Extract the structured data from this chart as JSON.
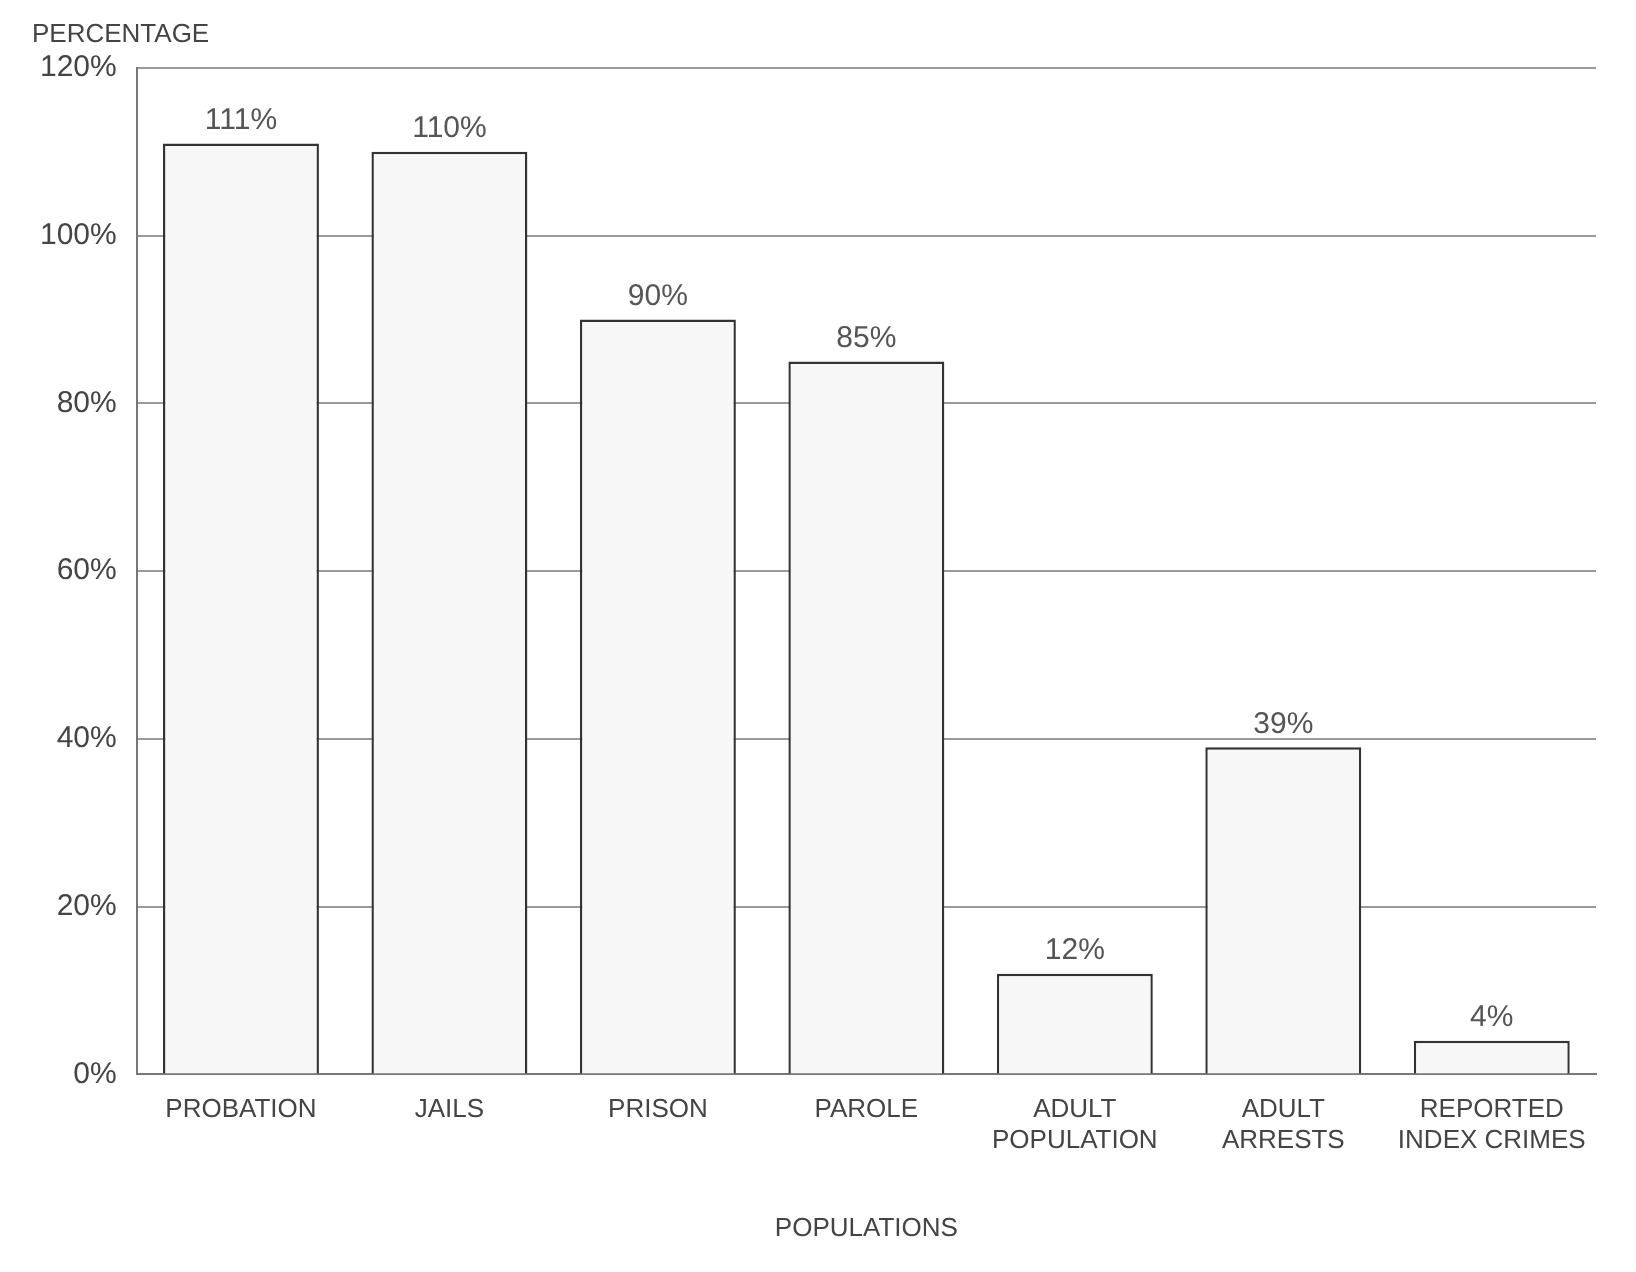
{
  "chart_data": {
    "type": "bar",
    "ylabel": "PERCENTAGE",
    "xlabel": "POPULATIONS",
    "categories": [
      "PROBATION",
      "JAILS",
      "PRISON",
      "PAROLE",
      "ADULT POPULATION",
      "ADULT ARRESTS",
      "REPORTED INDEX CRIMES"
    ],
    "values": [
      111,
      110,
      90,
      85,
      12,
      39,
      4
    ],
    "value_labels": [
      "111%",
      "110%",
      "90%",
      "85%",
      "12%",
      "39%",
      "4%"
    ],
    "color": "#f7f7f7",
    "ylim": [
      0,
      120
    ],
    "yticks": [
      {
        "value": 0,
        "label": "0%"
      },
      {
        "value": 20,
        "label": "20%"
      },
      {
        "value": 40,
        "label": "40%"
      },
      {
        "value": 60,
        "label": "60%"
      },
      {
        "value": 80,
        "label": "80%"
      },
      {
        "value": 100,
        "label": "100%"
      },
      {
        "value": 120,
        "label": "120%"
      }
    ],
    "grid": "y"
  }
}
